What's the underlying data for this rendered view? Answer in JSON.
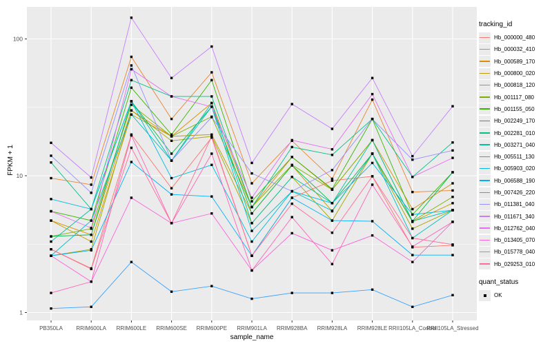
{
  "figure": {
    "background": "#FFFFFF",
    "panel_background": "#EBEBEB",
    "grid_color": "#FFFFFF",
    "axis_tick_color": "#333333",
    "tick_label_color": "#4D4D4D",
    "point_color": "#000000"
  },
  "chart_data": {
    "type": "line",
    "title": "",
    "xlabel": "sample_name",
    "ylabel": "FPKM + 1",
    "y_scale": "log10",
    "ylim": [
      1,
      172
    ],
    "y_ticks": [
      1,
      10,
      100
    ],
    "y_minor_ticks": [
      3.162,
      31.62
    ],
    "grid": "on",
    "legend_position": "right",
    "point_marker": "black-square",
    "categories": [
      "PB350LA",
      "RRIM600LA",
      "RRIM600LE",
      "RRIM600SE",
      "RRIM600PE",
      "RRIM901LA",
      "RRIM928BA",
      "RRIM928LA",
      "RRIM928LE",
      "RRII105LA_Control",
      "RRII105LA_Stressed"
    ],
    "series": [
      {
        "name": "Hb_000000_480",
        "color": "#F8766D",
        "values": [
          2.9,
          2.1,
          20,
          8.1,
          19,
          2.6,
          6.9,
          9.2,
          9.9,
          3.0,
          3.1
        ]
      },
      {
        "name": "Hb_000032_410",
        "color": "#EA8331",
        "values": [
          9.6,
          8.6,
          74,
          26,
          57,
          8.8,
          18,
          9.5,
          36,
          7.6,
          7.8
        ]
      },
      {
        "name": "Hb_000589_170",
        "color": "#D89000",
        "values": [
          4.7,
          3.7,
          30,
          19.4,
          34,
          5.9,
          13.7,
          7.9,
          18.2,
          5.7,
          8.8
        ]
      },
      {
        "name": "Hb_000800_020",
        "color": "#C09B00",
        "values": [
          4.7,
          3.3,
          28,
          19.4,
          20,
          5.3,
          11.9,
          5.5,
          14.5,
          4.6,
          6.3
        ]
      },
      {
        "name": "Hb_000818_120",
        "color": "#A3A500",
        "values": [
          2.6,
          2.9,
          30,
          18,
          19.4,
          4.5,
          9.8,
          4.7,
          14.5,
          4.1,
          5.6
        ]
      },
      {
        "name": "Hb_001117_080",
        "color": "#7CAE00",
        "values": [
          3.6,
          4.1,
          33,
          19.4,
          27,
          5.9,
          12,
          7.9,
          18.2,
          4.65,
          7.0
        ]
      },
      {
        "name": "Hb_001155_050",
        "color": "#39B600",
        "values": [
          5.5,
          4.7,
          44,
          20,
          50,
          6.5,
          13.7,
          8.0,
          26,
          5.2,
          10.6
        ]
      },
      {
        "name": "Hb_002249_170",
        "color": "#00BB4E",
        "values": [
          3.6,
          3.7,
          35,
          14.5,
          32,
          5.3,
          11.9,
          6.3,
          14.5,
          4.65,
          10.6
        ]
      },
      {
        "name": "Hb_002281_010",
        "color": "#00C087",
        "values": [
          12.5,
          5.7,
          50,
          38,
          38,
          5.9,
          16.2,
          14.2,
          26,
          9.8,
          17.5
        ]
      },
      {
        "name": "Hb_003271_040",
        "color": "#00C1A3",
        "values": [
          3.3,
          5.7,
          35,
          12.9,
          34,
          4.5,
          9.8,
          6.3,
          18.2,
          4.65,
          5.6
        ]
      },
      {
        "name": "Hb_005511_130",
        "color": "#00BFC4",
        "values": [
          2.6,
          4.7,
          28,
          12.9,
          32,
          3.95,
          7.7,
          5.55,
          14.5,
          3.5,
          5.6
        ]
      },
      {
        "name": "Hb_005903_020",
        "color": "#00BAE0",
        "values": [
          6.75,
          5.7,
          35,
          9.6,
          12,
          3.3,
          7.7,
          6.3,
          12.4,
          5.2,
          5.6
        ]
      },
      {
        "name": "Hb_006588_190",
        "color": "#00B0F6",
        "values": [
          2.6,
          2.85,
          12.6,
          7.3,
          7.05,
          2.6,
          6.9,
          4.7,
          4.65,
          2.63,
          2.63
        ]
      },
      {
        "name": "Hb_007426_220",
        "color": "#35A2FF",
        "values": [
          1.07,
          1.1,
          2.34,
          1.42,
          1.56,
          1.26,
          1.39,
          1.39,
          1.47,
          1.1,
          1.34
        ]
      },
      {
        "name": "Hb_011381_040",
        "color": "#9590FF",
        "values": [
          14,
          7.5,
          64,
          12.9,
          26.8,
          10.4,
          7.7,
          11.0,
          26,
          13.1,
          15.3
        ]
      },
      {
        "name": "Hb_011671_340",
        "color": "#C77CFF",
        "values": [
          17.4,
          9.7,
          143,
          51.8,
          88,
          12.4,
          33.4,
          22,
          51.8,
          13.9,
          32.2
        ]
      },
      {
        "name": "Hb_012762_040",
        "color": "#E76BF3",
        "values": [
          5.5,
          4.15,
          60,
          38,
          31.9,
          6.9,
          18.2,
          15.6,
          39.5,
          9.8,
          13.5
        ]
      },
      {
        "name": "Hb_013405_070",
        "color": "#FA62DB",
        "values": [
          2.6,
          1.68,
          6.9,
          4.5,
          5.3,
          2.03,
          3.8,
          2.85,
          3.66,
          2.34,
          4.6
        ]
      },
      {
        "name": "Hb_015778_040",
        "color": "#FF62BC",
        "values": [
          1.39,
          1.68,
          19.7,
          4.5,
          14.5,
          2.03,
          4.98,
          2.26,
          8.6,
          3.03,
          4.6
        ]
      },
      {
        "name": "Hb_029253_010",
        "color": "#FF6A98",
        "values": [
          2.9,
          2.08,
          16,
          4.5,
          19.4,
          2.6,
          6.24,
          3.83,
          9.9,
          3.5,
          3.14
        ]
      }
    ]
  },
  "legend": {
    "tracking_title": "tracking_id",
    "quant_title": "quant_status",
    "quant_items": [
      {
        "label": "OK"
      }
    ]
  }
}
